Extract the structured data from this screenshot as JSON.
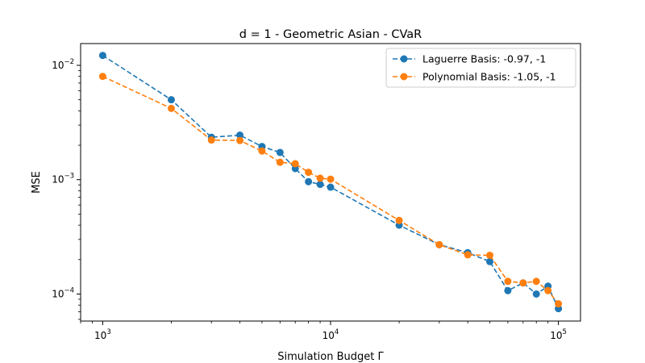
{
  "chart_data": {
    "type": "line",
    "title": "d = 1 - Geometric Asian - CVaR",
    "xlabel": "Simulation Budget Γ",
    "ylabel": "MSE",
    "xscale": "log",
    "yscale": "log",
    "xlim": [
      800,
      125000
    ],
    "ylim": [
      5.8e-05,
      0.0155
    ],
    "grid": false,
    "legend_position": "upper right",
    "x": [
      1000,
      2000,
      3000,
      4000,
      5000,
      6000,
      7000,
      8000,
      9000,
      10000,
      20000,
      30000,
      40000,
      50000,
      60000,
      70000,
      80000,
      90000,
      100000
    ],
    "series": [
      {
        "name": "Laguerre Basis: -0.97, -1",
        "color": "#1f77b4",
        "values": [
          0.0122,
          0.005,
          0.00235,
          0.00245,
          0.00195,
          0.00173,
          0.00125,
          0.00096,
          0.00091,
          0.00086,
          0.0004,
          0.00027,
          0.00023,
          0.000192,
          0.000107,
          0.000125,
          0.0001,
          0.000117,
          7.45e-05
        ]
      },
      {
        "name": "Polynomial Basis: -1.05, -1",
        "color": "#ff7f0e",
        "values": [
          0.008,
          0.0042,
          0.00222,
          0.0022,
          0.00178,
          0.00142,
          0.00138,
          0.00116,
          0.00103,
          0.00101,
          0.00044,
          0.00027,
          0.00022,
          0.000218,
          0.000129,
          0.000125,
          0.000129,
          0.000107,
          8.2e-05
        ]
      }
    ],
    "x_ticks": [
      {
        "value": 1000,
        "mantissa": "10",
        "exponent": "3"
      },
      {
        "value": 10000,
        "mantissa": "10",
        "exponent": "4"
      },
      {
        "value": 100000,
        "mantissa": "10",
        "exponent": "5"
      }
    ],
    "y_ticks": [
      {
        "value": 0.0001,
        "mantissa": "10",
        "exponent": "−4"
      },
      {
        "value": 0.001,
        "mantissa": "10",
        "exponent": "−3"
      },
      {
        "value": 0.01,
        "mantissa": "10",
        "exponent": "−2"
      }
    ]
  }
}
